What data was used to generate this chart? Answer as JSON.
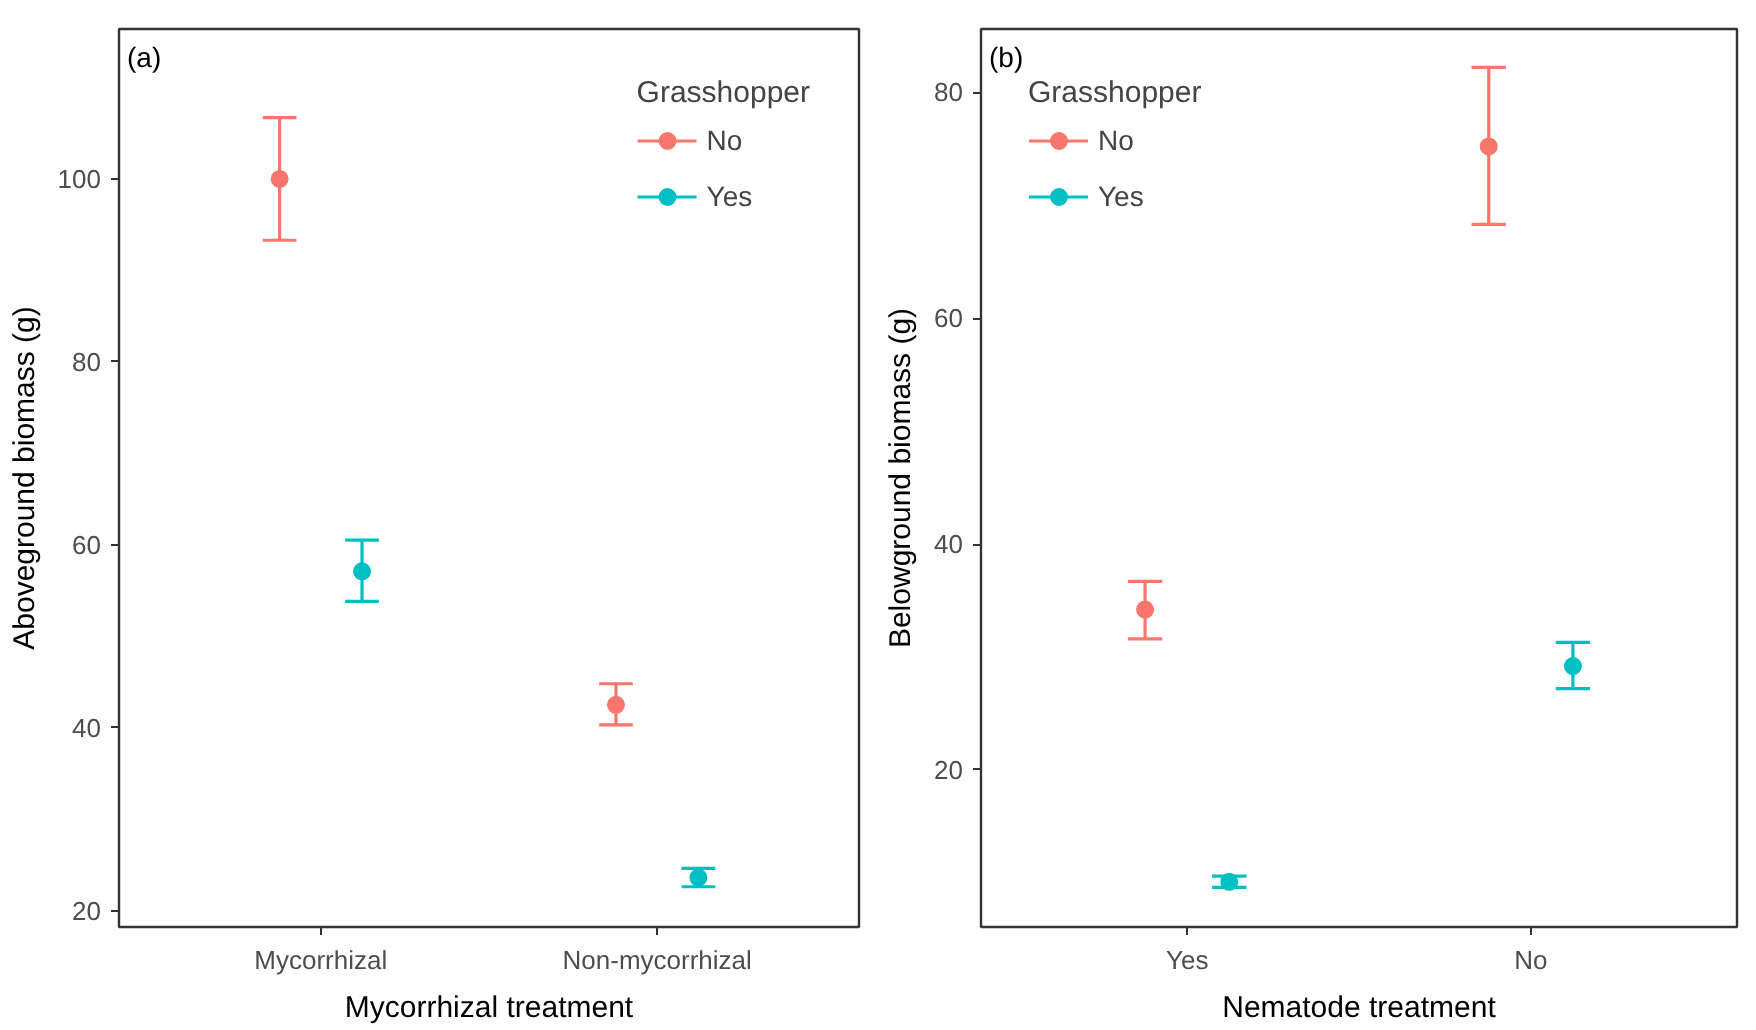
{
  "chart_data": [
    {
      "type": "scatter",
      "xlabel": "Mycorrhizal treatment",
      "ylabel": "Aboveground biomass (g)",
      "legend_title": "Grasshopper",
      "annotations": [
        "(a)"
      ],
      "categories": [
        "Mycorrhizal",
        "Non-mycorrhizal"
      ],
      "ylim": [
        18.2,
        116.4
      ],
      "yticks": [
        20,
        40,
        60,
        80,
        100
      ],
      "grid": false,
      "legend": "top right",
      "marker": "circle",
      "series": [
        {
          "name": "No",
          "color": "#f8766d",
          "values": [
            100,
            42.5
          ],
          "errors": [
            [
              93.3,
              106.7
            ],
            [
              40.3,
              44.8
            ]
          ]
        },
        {
          "name": "Yes",
          "color": "#00bfc4",
          "values": [
            57.1,
            23.6
          ],
          "errors": [
            [
              53.8,
              60.5
            ],
            [
              22.6,
              24.6
            ]
          ]
        }
      ]
    },
    {
      "type": "scatter",
      "xlabel": "Nematode treatment",
      "ylabel": "Belowground biomass (g)",
      "legend_title": "Grasshopper",
      "annotations": [
        "(b)"
      ],
      "categories": [
        "Yes",
        "No"
      ],
      "ylim": [
        6.1,
        85.6
      ],
      "yticks": [
        20,
        40,
        60,
        80
      ],
      "grid": false,
      "legend": "top left",
      "marker": "circle",
      "series": [
        {
          "name": "No",
          "color": "#f8766d",
          "values": [
            34.2,
            75.2
          ],
          "errors": [
            [
              31.6,
              36.7
            ],
            [
              68.3,
              82.2
            ]
          ]
        },
        {
          "name": "Yes",
          "color": "#00bfc4",
          "values": [
            10.1,
            29.2
          ],
          "errors": [
            [
              9.6,
              10.6
            ],
            [
              27.2,
              31.3
            ]
          ]
        }
      ]
    }
  ]
}
